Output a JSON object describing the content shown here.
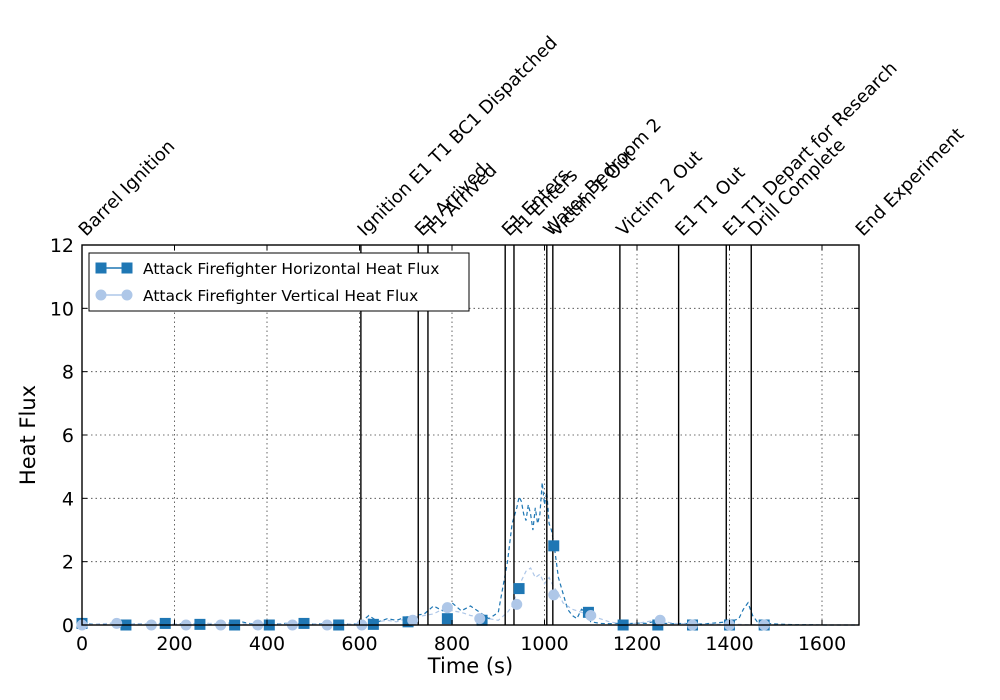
{
  "chart_data": {
    "type": "line",
    "title": "",
    "xlabel": "Time (s)",
    "ylabel": "Heat Flux",
    "xlim": [
      0,
      1680
    ],
    "ylim": [
      0,
      12
    ],
    "xticks": [
      0,
      200,
      400,
      600,
      800,
      1000,
      1200,
      1400,
      1600
    ],
    "yticks": [
      0,
      2,
      4,
      6,
      8,
      10,
      12
    ],
    "grid": true,
    "legend_position": "top-left",
    "events": [
      {
        "time": 0,
        "label": "Barrel Ignition"
      },
      {
        "time": 603,
        "label": "Ignition E1 T1 BC1 Dispatched"
      },
      {
        "time": 727,
        "label": "E1 Arrived"
      },
      {
        "time": 748,
        "label": "T1 Arrived"
      },
      {
        "time": 915,
        "label": "E1 Enters"
      },
      {
        "time": 934,
        "label": "T1 Enters"
      },
      {
        "time": 1005,
        "label": "Water Bedroom 2"
      },
      {
        "time": 1018,
        "label": "Victim 1 Out"
      },
      {
        "time": 1163,
        "label": "Victim 2 Out"
      },
      {
        "time": 1290,
        "label": "E1 T1 Out"
      },
      {
        "time": 1393,
        "label": "E1 T1 Depart for Research"
      },
      {
        "time": 1447,
        "label": "Drill Complete"
      },
      {
        "time": 1680,
        "label": "End Experiment"
      }
    ],
    "series": [
      {
        "name": "Attack Firefighter Horizontal Heat Flux",
        "color": "#1f77b4",
        "marker": "square",
        "line_style": "dashed",
        "x": [
          0,
          20,
          40,
          60,
          80,
          100,
          120,
          140,
          160,
          180,
          200,
          220,
          240,
          260,
          280,
          300,
          320,
          340,
          360,
          380,
          400,
          420,
          440,
          460,
          480,
          500,
          520,
          540,
          560,
          580,
          600,
          620,
          640,
          660,
          680,
          700,
          720,
          740,
          760,
          780,
          800,
          820,
          840,
          860,
          880,
          900,
          910,
          920,
          930,
          940,
          945,
          950,
          955,
          960,
          965,
          970,
          975,
          980,
          985,
          990,
          995,
          1000,
          1005,
          1010,
          1015,
          1020,
          1030,
          1040,
          1050,
          1060,
          1070,
          1080,
          1090,
          1100,
          1120,
          1140,
          1160,
          1180,
          1200,
          1220,
          1240,
          1260,
          1280,
          1300,
          1320,
          1340,
          1360,
          1380,
          1400,
          1420,
          1430,
          1440,
          1450,
          1460,
          1480,
          1500,
          1520,
          1540,
          1560,
          1580,
          1600,
          1620,
          1640,
          1660,
          1680
        ],
        "y": [
          0.05,
          0.03,
          0.02,
          0.05,
          0.03,
          0.02,
          0.04,
          0.03,
          0.05,
          0.04,
          0.02,
          0.05,
          0.04,
          0.08,
          0.03,
          0.05,
          0.06,
          0.12,
          0.05,
          0.03,
          0.02,
          0.03,
          0.05,
          0.04,
          0.02,
          0.03,
          0.04,
          0.03,
          0.05,
          0.02,
          0.05,
          0.3,
          0.1,
          0.2,
          0.15,
          0.25,
          0.3,
          0.35,
          0.6,
          0.45,
          0.7,
          0.45,
          0.6,
          0.4,
          0.2,
          0.4,
          1.2,
          2.0,
          3.2,
          3.7,
          4.05,
          3.9,
          3.5,
          3.3,
          3.8,
          3.5,
          3.0,
          3.7,
          3.2,
          3.5,
          4.5,
          3.8,
          4.2,
          3.2,
          3.0,
          2.6,
          1.5,
          1.0,
          0.5,
          0.3,
          0.2,
          0.5,
          0.4,
          0.1,
          0.05,
          0.04,
          0.05,
          0.04,
          0.06,
          0.05,
          0.12,
          0.05,
          0.04,
          0.05,
          0.04,
          0.03,
          0.05,
          0.08,
          0.1,
          0.2,
          0.5,
          0.7,
          0.3,
          0.1,
          0.05,
          0.03,
          0.02,
          0.01,
          0.01,
          0.01,
          0.0,
          0.0,
          0.0,
          0.0,
          0.0
        ],
        "marker_points": [
          [
            0,
            0.05
          ],
          [
            95,
            0.0
          ],
          [
            180,
            0.05
          ],
          [
            255,
            0.02
          ],
          [
            330,
            0.0
          ],
          [
            405,
            0.0
          ],
          [
            480,
            0.05
          ],
          [
            555,
            0.0
          ],
          [
            630,
            0.02
          ],
          [
            705,
            0.1
          ],
          [
            790,
            0.2
          ],
          [
            865,
            0.15
          ],
          [
            945,
            1.15
          ],
          [
            1020,
            2.5
          ],
          [
            1095,
            0.4
          ],
          [
            1170,
            0.0
          ],
          [
            1245,
            0.0
          ],
          [
            1320,
            0.0
          ],
          [
            1400,
            0.0
          ],
          [
            1475,
            0.0
          ]
        ]
      },
      {
        "name": "Attack Firefighter Vertical Heat Flux",
        "color": "#aec7e8",
        "marker": "circle",
        "line_style": "dashed",
        "x": [
          0,
          20,
          40,
          60,
          80,
          100,
          120,
          140,
          160,
          180,
          200,
          220,
          240,
          260,
          280,
          300,
          320,
          340,
          360,
          380,
          400,
          420,
          440,
          460,
          480,
          500,
          520,
          540,
          560,
          580,
          600,
          620,
          640,
          660,
          680,
          700,
          720,
          740,
          760,
          780,
          800,
          820,
          840,
          860,
          880,
          900,
          920,
          930,
          940,
          950,
          960,
          970,
          980,
          990,
          1000,
          1010,
          1020,
          1030,
          1040,
          1050,
          1060,
          1080,
          1100,
          1120,
          1140,
          1160,
          1180,
          1200,
          1220,
          1240,
          1260,
          1280,
          1300,
          1320,
          1340,
          1360,
          1380,
          1400,
          1420,
          1440,
          1460,
          1480,
          1500,
          1520,
          1540,
          1560,
          1580,
          1600,
          1620,
          1640,
          1660,
          1680
        ],
        "y": [
          0.03,
          0.02,
          0.04,
          0.05,
          0.03,
          0.02,
          0.04,
          0.03,
          0.02,
          0.05,
          0.03,
          0.02,
          0.04,
          0.03,
          0.05,
          0.02,
          0.03,
          0.04,
          0.03,
          0.02,
          0.03,
          0.02,
          0.04,
          0.03,
          0.02,
          0.03,
          0.02,
          0.03,
          0.04,
          0.02,
          0.05,
          0.2,
          0.1,
          0.15,
          0.1,
          0.2,
          0.25,
          0.3,
          0.35,
          0.5,
          0.45,
          0.4,
          0.3,
          0.25,
          0.2,
          0.15,
          0.4,
          0.6,
          1.0,
          1.4,
          1.7,
          1.8,
          1.5,
          1.6,
          1.3,
          1.5,
          1.2,
          1.0,
          0.7,
          0.6,
          0.5,
          0.4,
          0.3,
          0.2,
          0.1,
          0.05,
          0.04,
          0.05,
          0.1,
          0.15,
          0.1,
          0.05,
          0.04,
          0.03,
          0.02,
          0.03,
          0.02,
          0.03,
          0.02,
          0.01,
          0.01,
          0.0,
          0.0,
          0.0,
          0.0,
          0.0,
          0.0,
          0.0,
          0.0,
          0.0,
          0.0,
          0.0
        ],
        "marker_points": [
          [
            0,
            0.0
          ],
          [
            75,
            0.05
          ],
          [
            150,
            0.0
          ],
          [
            225,
            0.0
          ],
          [
            300,
            0.0
          ],
          [
            380,
            0.0
          ],
          [
            455,
            0.0
          ],
          [
            530,
            0.0
          ],
          [
            605,
            0.0
          ],
          [
            715,
            0.15
          ],
          [
            790,
            0.55
          ],
          [
            860,
            0.2
          ],
          [
            940,
            0.65
          ],
          [
            1020,
            0.95
          ],
          [
            1100,
            0.3
          ],
          [
            1250,
            0.15
          ],
          [
            1320,
            0.0
          ],
          [
            1400,
            0.0
          ],
          [
            1475,
            0.0
          ]
        ]
      }
    ]
  }
}
